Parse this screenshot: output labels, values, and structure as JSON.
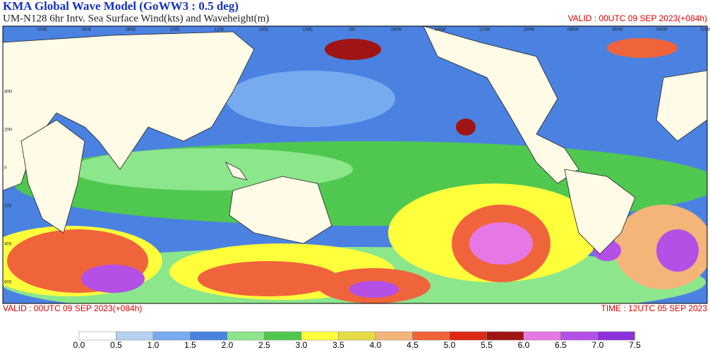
{
  "header": {
    "title": "KMA  Global Wave Model (GoWW3 : 0.5 deg)",
    "subtitle": "UM-N128  6hr Intv. Sea Surface Wind(kts) and Waveheight(m)",
    "valid_top": "VALID : 00UTC 09 SEP 2023(+084h)"
  },
  "footer": {
    "valid": "VALID : 00UTC 09 SEP 2023(+084h)",
    "time": "TIME : 12UTC 05 SEP 2023"
  },
  "map": {
    "lon_labels": [
      "040E",
      "060E",
      "080E",
      "100E",
      "120E",
      "140E",
      "160E",
      "180",
      "160W",
      "140W",
      "120W",
      "100W",
      "080W",
      "060W",
      "040W",
      "020W"
    ],
    "lat_labels": [
      "40N",
      "20N",
      "0",
      "20S",
      "40S",
      "60S"
    ]
  },
  "colorbar": {
    "labels": [
      "0.0",
      "0.5",
      "1.0",
      "1.5",
      "2.0",
      "2.5",
      "3.0",
      "3.5",
      "4.0",
      "4.5",
      "5.0",
      "5.5",
      "6.0",
      "6.5",
      "7.0",
      "7.5"
    ],
    "colors": [
      "#ffffff",
      "#b4d2f0",
      "#78aaf0",
      "#4b82e1",
      "#8ce68c",
      "#50c850",
      "#ffff3c",
      "#e6dc46",
      "#f5b478",
      "#f0643c",
      "#dc2814",
      "#a01414",
      "#e678e6",
      "#b450e6",
      "#8c32dc"
    ]
  }
}
